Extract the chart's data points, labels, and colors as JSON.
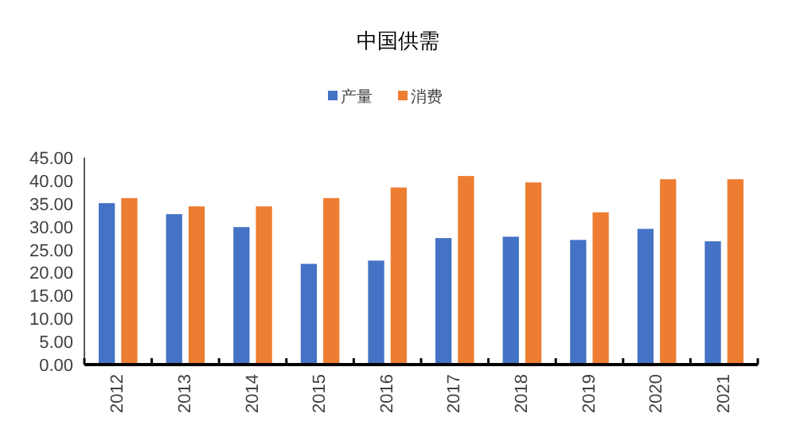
{
  "chart_data": {
    "type": "bar",
    "title": "中国供需",
    "categories": [
      "2012",
      "2013",
      "2014",
      "2015",
      "2016",
      "2017",
      "2018",
      "2019",
      "2020",
      "2021"
    ],
    "series": [
      {
        "name": "产量",
        "color": "#4472c4",
        "values": [
          35.1,
          32.7,
          29.9,
          21.9,
          22.6,
          27.5,
          27.8,
          27.1,
          29.5,
          26.8
        ]
      },
      {
        "name": "消费",
        "color": "#ed7d31",
        "values": [
          36.2,
          34.4,
          34.4,
          36.2,
          38.5,
          41.0,
          39.6,
          33.1,
          40.3,
          40.3
        ]
      }
    ],
    "ylim": [
      0,
      45
    ],
    "yticks": [
      {
        "value": 0,
        "label": "0.00"
      },
      {
        "value": 5,
        "label": "5.00"
      },
      {
        "value": 10,
        "label": "10.00"
      },
      {
        "value": 15,
        "label": "15.00"
      },
      {
        "value": 20,
        "label": "20.00"
      },
      {
        "value": 25,
        "label": "25.00"
      },
      {
        "value": 30,
        "label": "30.00"
      },
      {
        "value": 35,
        "label": "35.00"
      },
      {
        "value": 40,
        "label": "40.00"
      },
      {
        "value": 45,
        "label": "45.00"
      }
    ],
    "legend": "top",
    "grid": false
  }
}
